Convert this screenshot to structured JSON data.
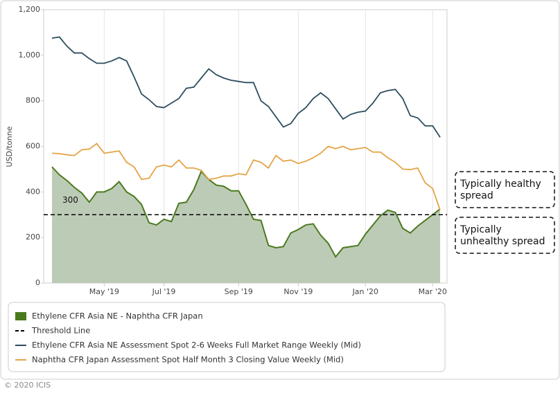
{
  "chart_data": {
    "type": "line",
    "y_label": "USD/tonne",
    "categories": [
      null,
      null,
      null,
      null,
      null,
      null,
      null,
      "May '19",
      null,
      null,
      null,
      null,
      null,
      null,
      null,
      "Jul '19",
      null,
      null,
      null,
      null,
      null,
      null,
      null,
      null,
      null,
      "Sep '19",
      null,
      null,
      null,
      null,
      null,
      null,
      null,
      "Nov '19",
      null,
      null,
      null,
      null,
      null,
      null,
      null,
      null,
      "Jan '20",
      null,
      null,
      null,
      null,
      null,
      null,
      null,
      null,
      "Mar '20",
      null
    ],
    "ylim": [
      0,
      1200
    ],
    "yticks": [
      0,
      200,
      400,
      600,
      800,
      {
        "value": 1000,
        "label": "1,000"
      },
      {
        "value": 1200,
        "label": "1,200"
      }
    ],
    "grid": true,
    "series": [
      {
        "name": "Ethylene CFR Asia NE - Naphtha CFR Japan",
        "type": "area",
        "color": "#4a7a1e",
        "fill": "#bccbb6",
        "values": [
          510,
          475,
          450,
          420,
          395,
          355,
          400,
          400,
          415,
          445,
          400,
          380,
          345,
          265,
          255,
          280,
          270,
          350,
          355,
          410,
          490,
          455,
          430,
          425,
          405,
          405,
          345,
          280,
          275,
          165,
          155,
          160,
          220,
          235,
          255,
          260,
          210,
          175,
          115,
          155,
          160,
          165,
          215,
          255,
          295,
          320,
          310,
          240,
          220,
          250,
          275,
          300,
          325
        ]
      },
      {
        "name": "Ethylene CFR Asia NE Assessment Spot 2-6 Weeks Full Market Range Weekly (Mid)",
        "type": "line",
        "color": "#2b4d5c",
        "values": [
          1075,
          1080,
          1040,
          1010,
          1010,
          985,
          965,
          965,
          975,
          990,
          975,
          905,
          830,
          805,
          775,
          770,
          790,
          810,
          855,
          860,
          900,
          940,
          915,
          900,
          890,
          885,
          880,
          880,
          800,
          775,
          730,
          685,
          700,
          745,
          770,
          810,
          835,
          810,
          765,
          720,
          740,
          750,
          755,
          790,
          835,
          845,
          850,
          810,
          735,
          725,
          690,
          690,
          640
        ]
      },
      {
        "name": "Naphtha CFR Japan Assessment Spot Half Month 3 Closing Value Weekly (Mid)",
        "type": "line",
        "color": "#e3a446",
        "values": [
          570,
          568,
          563,
          560,
          585,
          588,
          612,
          570,
          575,
          580,
          530,
          510,
          455,
          460,
          510,
          518,
          510,
          540,
          505,
          505,
          495,
          455,
          460,
          470,
          470,
          480,
          475,
          540,
          530,
          505,
          560,
          535,
          540,
          525,
          535,
          550,
          570,
          600,
          590,
          600,
          585,
          590,
          595,
          575,
          575,
          550,
          530,
          500,
          498,
          505,
          440,
          415,
          320
        ]
      }
    ],
    "threshold": {
      "name": "Threshold Line",
      "value": 300,
      "color": "#000000"
    },
    "annotations": [
      {
        "lines": [
          "Typically healthy",
          "spread"
        ]
      },
      {
        "lines": [
          "Typically",
          "unhealthy spread"
        ]
      }
    ],
    "credit": "© 2020 ICIS"
  }
}
